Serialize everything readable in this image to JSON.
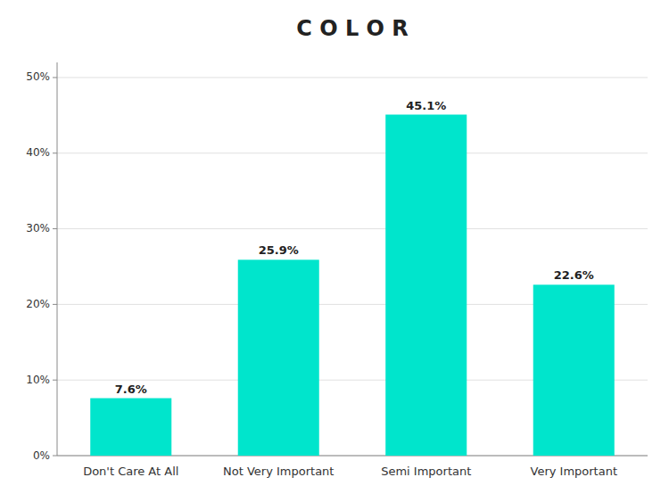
{
  "chart_data": {
    "type": "bar",
    "title": "C O L O R",
    "categories": [
      "Don't Care At All",
      "Not Very Important",
      "Semi Important",
      "Very Important"
    ],
    "values": [
      7.6,
      25.9,
      45.1,
      22.6
    ],
    "value_labels": [
      "7.6%",
      "25.9%",
      "45.1%",
      "22.6%"
    ],
    "color": "#00E5CC",
    "ylim": [
      0,
      52
    ],
    "yticks": [
      {
        "value": 0,
        "label": "0%"
      },
      {
        "value": 10,
        "label": "10%"
      },
      {
        "value": 20,
        "label": "20%"
      },
      {
        "value": 30,
        "label": "30%"
      },
      {
        "value": 40,
        "label": "40%"
      },
      {
        "value": 50,
        "label": "50%"
      }
    ],
    "grid": true,
    "data_labels": true
  }
}
